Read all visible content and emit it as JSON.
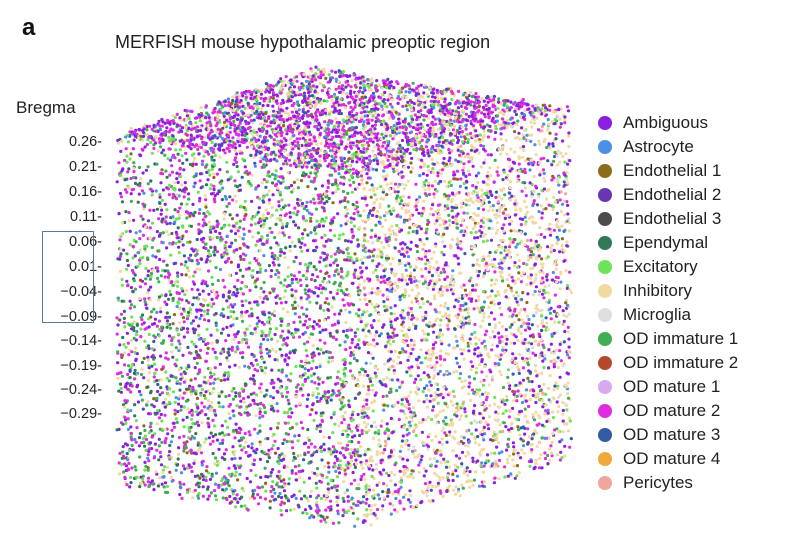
{
  "figure": {
    "panel_letter": "a"
  },
  "chart_data": {
    "type": "scatter",
    "subtype": "3d-scatter",
    "title": "MERFISH mouse hypothalamic preoptic region",
    "z_axis": {
      "label": "Bregma",
      "ticks": [
        "0.26-",
        "0.21-",
        "0.16-",
        "0.11-",
        "0.06-",
        "0.01-",
        "−0.04-",
        "−0.09-",
        "−0.14-",
        "−0.19-",
        "−0.24-",
        "−0.29-"
      ],
      "values": [
        0.26,
        0.21,
        0.16,
        0.11,
        0.06,
        0.01,
        -0.04,
        -0.09,
        -0.14,
        -0.19,
        -0.24,
        -0.29
      ],
      "highlighted_range": [
        -0.09,
        0.06
      ]
    },
    "legend_position": "right",
    "series": [
      {
        "name": "Ambiguous",
        "color": "#8a1fe0"
      },
      {
        "name": "Astrocyte",
        "color": "#4a90e6"
      },
      {
        "name": "Endothelial 1",
        "color": "#8a6c1a"
      },
      {
        "name": "Endothelial 2",
        "color": "#6a35b5"
      },
      {
        "name": "Endothelial 3",
        "color": "#4b4b4b"
      },
      {
        "name": "Ependymal",
        "color": "#2f7a55"
      },
      {
        "name": "Excitatory",
        "color": "#6ee35a"
      },
      {
        "name": "Inhibitory",
        "color": "#f2d9a2"
      },
      {
        "name": "Microglia",
        "color": "#dedede"
      },
      {
        "name": "OD immature 1",
        "color": "#3fae55"
      },
      {
        "name": "OD immature 2",
        "color": "#b5482a"
      },
      {
        "name": "OD mature 1",
        "color": "#d9a8f0"
      },
      {
        "name": "OD mature 2",
        "color": "#e02ce0"
      },
      {
        "name": "OD mature 3",
        "color": "#2f5ca5"
      },
      {
        "name": "OD mature 4",
        "color": "#f0a838"
      },
      {
        "name": "Pericytes",
        "color": "#f2a59a"
      }
    ]
  }
}
